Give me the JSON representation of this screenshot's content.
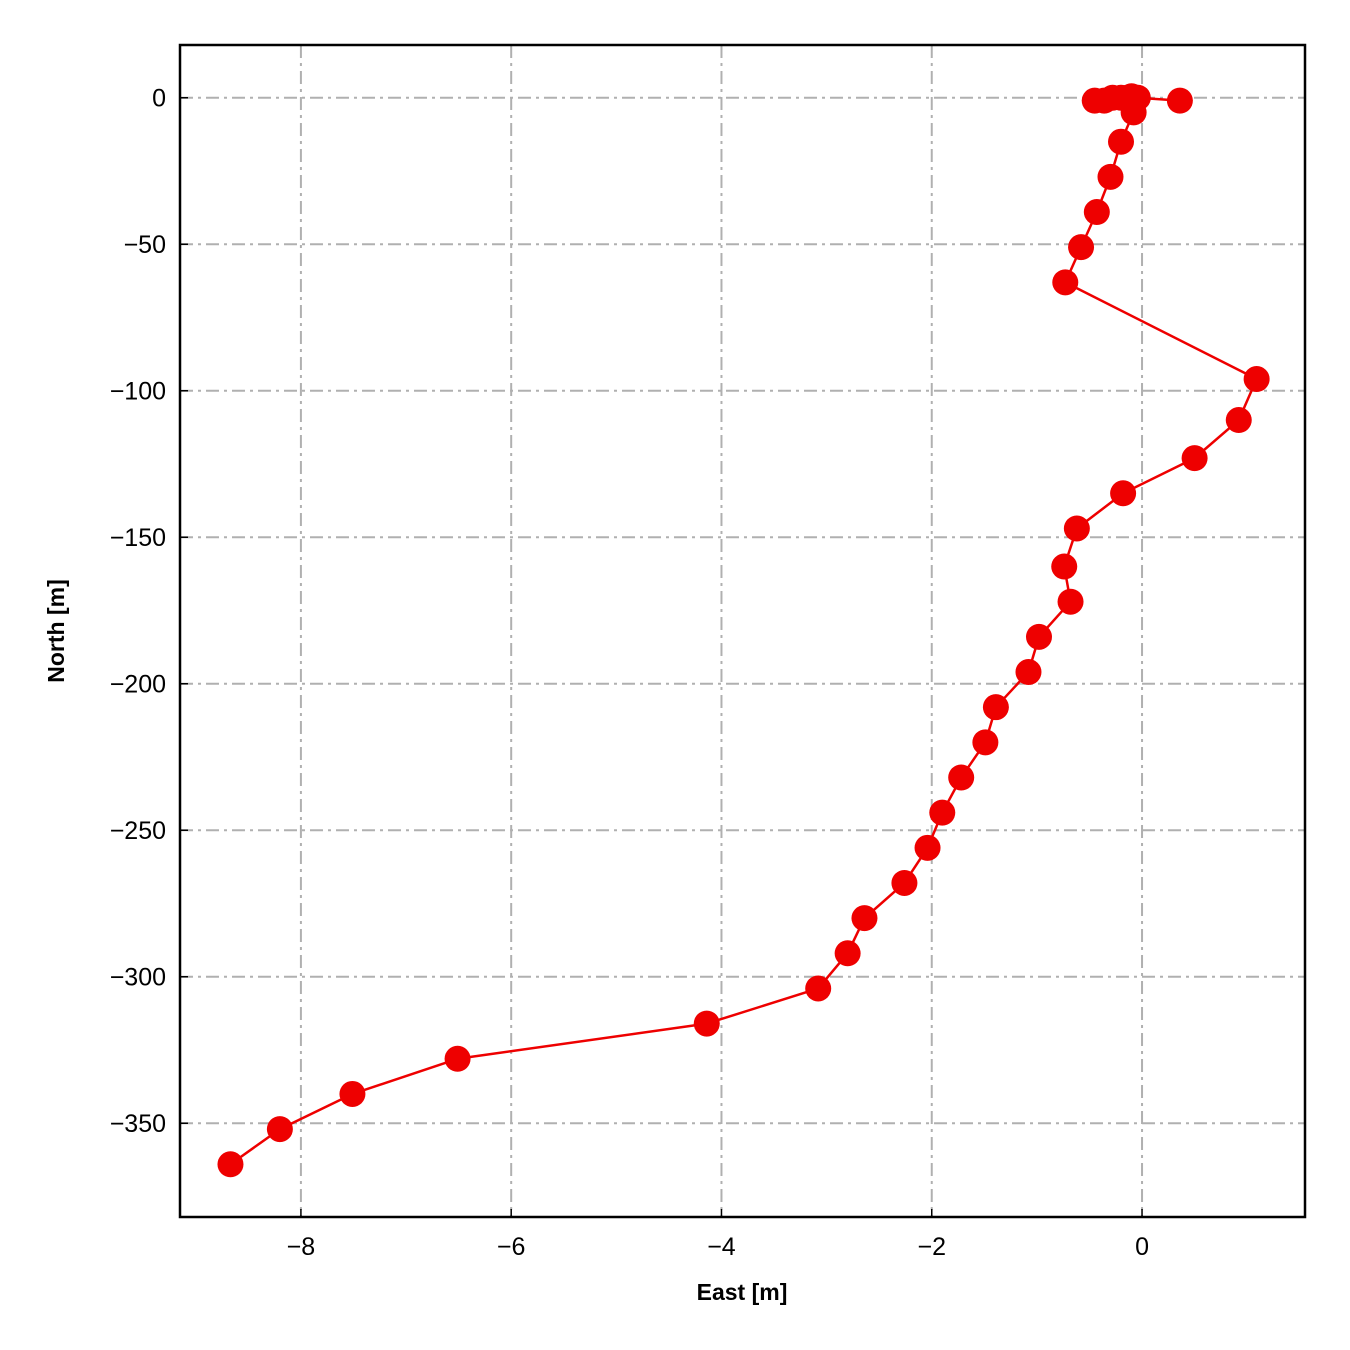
{
  "chart_data": {
    "type": "line",
    "xlabel": "East [m]",
    "ylabel": "North [m]",
    "xlim": [
      -9.15,
      1.55
    ],
    "ylim": [
      -382,
      18
    ],
    "grid": true,
    "xticks": [
      -8,
      -6,
      -4,
      -2,
      0
    ],
    "xtick_labels": [
      "−8",
      "−6",
      "−4",
      "−2",
      "0"
    ],
    "yticks": [
      0,
      -50,
      -100,
      -150,
      -200,
      -250,
      -300,
      -350
    ],
    "ytick_labels": [
      "0",
      "−50",
      "−100",
      "−150",
      "−200",
      "−250",
      "−300",
      "−350"
    ],
    "series": [
      {
        "color": "#ee0000",
        "marker": "circle",
        "x": [
          0.36,
          -0.04,
          -0.1,
          -0.14,
          -0.2,
          -0.28,
          -0.36,
          -0.45,
          -0.08,
          -0.2,
          -0.3,
          -0.43,
          -0.58,
          -0.73,
          1.09,
          0.92,
          0.5,
          -0.18,
          -0.62,
          -0.74,
          -0.68,
          -0.98,
          -1.08,
          -1.39,
          -1.49,
          -1.72,
          -1.9,
          -2.04,
          -2.26,
          -2.64,
          -2.8,
          -3.08,
          -4.14,
          -6.51,
          -7.51,
          -8.2,
          -8.67
        ],
        "y": [
          -1,
          0,
          0.5,
          0,
          0,
          0,
          -1,
          -1,
          -5,
          -15,
          -27,
          -39,
          -51,
          -63,
          -96,
          -110,
          -123,
          -135,
          -147,
          -160,
          -172,
          -184,
          -196,
          -208,
          -220,
          -232,
          -244,
          -256,
          -268,
          -280,
          -292,
          -304,
          -316,
          -328,
          -340,
          -352,
          -364
        ]
      }
    ]
  }
}
